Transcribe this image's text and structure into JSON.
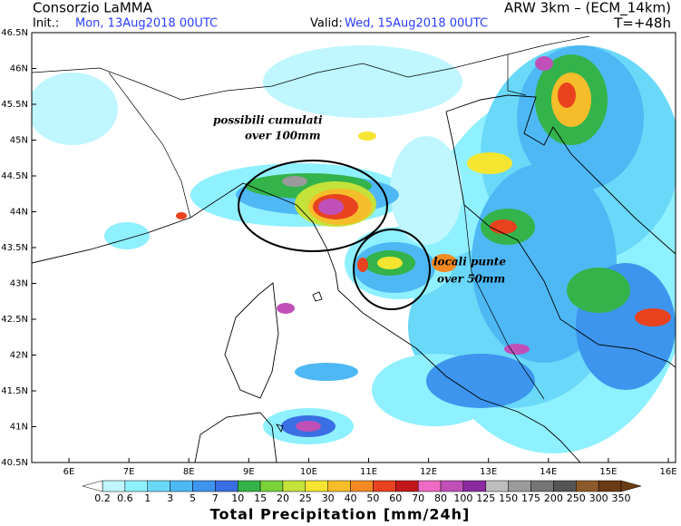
{
  "header": {
    "org": "Consorzio LaMMA",
    "model": "ARW 3km – (ECM_14km)",
    "init_label": "Init.:",
    "init_value": "Mon, 13Aug2018 00UTC",
    "valid_label": "Valid:",
    "valid_value": "Wed, 15Aug2018 00UTC",
    "lead": "T=+48h"
  },
  "map": {
    "lat_labels": [
      "46.5N",
      "46N",
      "45.5N",
      "45N",
      "44.5N",
      "44N",
      "43.5N",
      "43N",
      "42.5N",
      "42N",
      "41.5N",
      "41N",
      "40.5N"
    ],
    "lon_labels": [
      "6E",
      "7E",
      "8E",
      "9E",
      "10E",
      "11E",
      "12E",
      "13E",
      "14E",
      "15E",
      "16E"
    ],
    "annotations": [
      [
        "possibili cumulati",
        "over 100mm"
      ],
      [
        "locali punte",
        "over 50mm"
      ]
    ]
  },
  "colorbar": {
    "labels": [
      "0.2",
      "0.6",
      "1",
      "3",
      "5",
      "7",
      "10",
      "15",
      "20",
      "25",
      "30",
      "40",
      "50",
      "60",
      "70",
      "80",
      "100",
      "125",
      "150",
      "175",
      "200",
      "250",
      "300",
      "350"
    ],
    "colors": [
      "#bff6ff",
      "#8ff0ff",
      "#6ad8f8",
      "#4eb8f5",
      "#3d95ee",
      "#3a6fe4",
      "#33b34a",
      "#7ad13a",
      "#c4e23a",
      "#f5e531",
      "#f5bd2a",
      "#f48a22",
      "#e8421e",
      "#c3181a",
      "#ee6bc4",
      "#c050b8",
      "#8a2ba0",
      "#bdbdbd",
      "#9a9a9a",
      "#757575",
      "#555555",
      "#8c5a2b",
      "#6a3a14"
    ],
    "title": "Total Precipitation [mm/24h]"
  }
}
